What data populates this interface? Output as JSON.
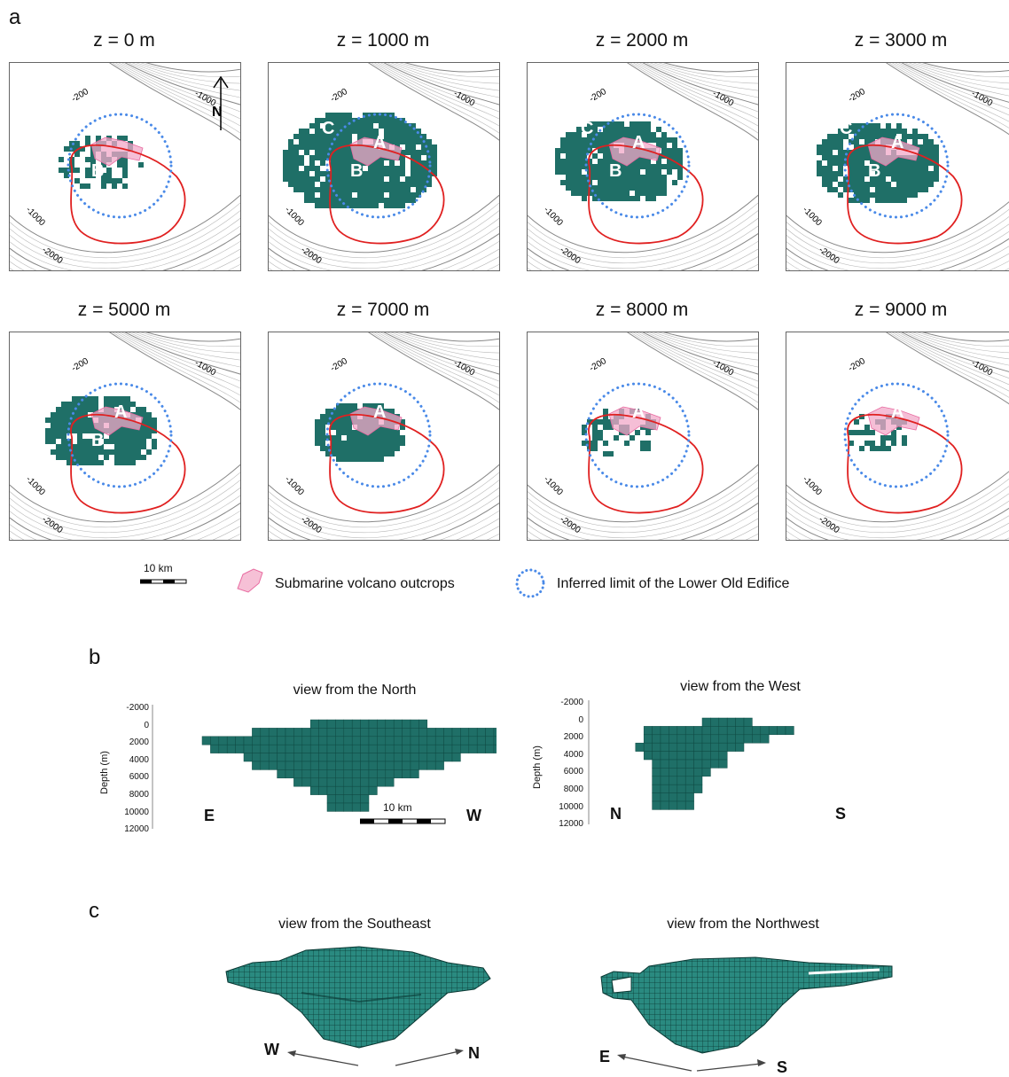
{
  "panel_letters": {
    "a": "a",
    "b": "b",
    "c": "c"
  },
  "depth_slices": [
    {
      "label": "z = 0 m",
      "blocks": [
        "B"
      ],
      "body_size": 0.35
    },
    {
      "label": "z = 1000 m",
      "blocks": [
        "C",
        "A",
        "B"
      ],
      "body_size": 1.0
    },
    {
      "label": "z = 2000 m",
      "blocks": [
        "C",
        "A",
        "B"
      ],
      "body_size": 0.75
    },
    {
      "label": "z = 3000 m",
      "blocks": [
        "C",
        "A",
        "B"
      ],
      "body_size": 0.7
    },
    {
      "label": "z = 5000 m",
      "blocks": [
        "A",
        "B"
      ],
      "body_size": 0.6
    },
    {
      "label": "z = 7000 m",
      "blocks": [
        "A"
      ],
      "body_size": 0.4
    },
    {
      "label": "z = 8000 m",
      "blocks": [
        "A"
      ],
      "body_size": 0.25
    },
    {
      "label": "z = 9000 m",
      "blocks": [
        "A"
      ],
      "body_size": 0.1
    }
  ],
  "contour_labels": {
    "c200": "-200",
    "c1000": "-1000",
    "c2000": "-2000"
  },
  "north_label": "N",
  "legend": {
    "scale": "10 km",
    "outcrops": "Submarine volcano outcrops",
    "limit": "Inferred limit of the Lower Old Edifice"
  },
  "section_b": {
    "north_view": {
      "title": "view from the North",
      "ylabel": "Depth (m)",
      "ticks": [
        "-2000",
        "0",
        "2000",
        "4000",
        "6000",
        "8000",
        "10000",
        "12000"
      ],
      "left": "E",
      "right": "W",
      "scale": "10 km"
    },
    "west_view": {
      "title": "view from the West",
      "ylabel": "Depth (m)",
      "ticks": [
        "-2000",
        "0",
        "2000",
        "4000",
        "6000",
        "8000",
        "10000",
        "12000"
      ],
      "left": "N",
      "right": "S"
    }
  },
  "section_c": {
    "southeast": {
      "title": "view from the Southeast",
      "left": "W",
      "right": "N"
    },
    "northwest": {
      "title": "view from the Northwest",
      "left": "E",
      "right": "S"
    }
  },
  "colors": {
    "body": "#1f6f67",
    "body_dark": "#0f4a44",
    "caldera": "#e02020",
    "limit": "#4a8ae8",
    "outcrop": "#f2a8c8",
    "contour": "#b8b8b8"
  }
}
